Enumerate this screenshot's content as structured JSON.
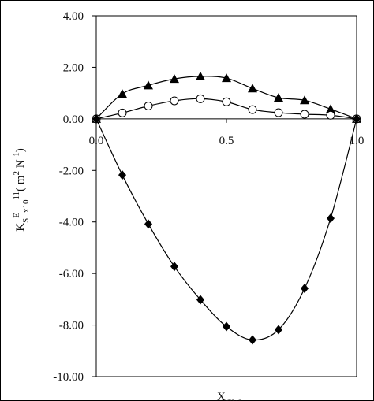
{
  "chart_data": {
    "type": "line",
    "x_label": [
      "X",
      "CW"
    ],
    "y_label": [
      "K",
      "S",
      "E",
      "x10",
      "11",
      "( m",
      "2",
      " N",
      "-1",
      ")"
    ],
    "xlim": [
      0,
      1
    ],
    "ylim": [
      -10,
      4
    ],
    "xticks": [
      {
        "value": 0,
        "label": "0.0"
      },
      {
        "value": 0.5,
        "label": "0.5"
      },
      {
        "value": 1,
        "label": "1.0"
      }
    ],
    "yticks": [
      {
        "value": 4,
        "label": "4.00"
      },
      {
        "value": 2,
        "label": "2.00"
      },
      {
        "value": 0,
        "label": "0.00"
      },
      {
        "value": -2,
        "label": "-2.00"
      },
      {
        "value": -4,
        "label": "-4.00"
      },
      {
        "value": -6,
        "label": "-6.00"
      },
      {
        "value": -8,
        "label": "-8.00"
      },
      {
        "value": -10,
        "label": "-10.00"
      }
    ],
    "x": [
      0,
      0.1,
      0.2,
      0.3,
      0.4,
      0.5,
      0.6,
      0.7,
      0.8,
      0.9,
      1.0
    ],
    "series": [
      {
        "marker": "triangle",
        "color": "#000000",
        "values": [
          0,
          0.97,
          1.3,
          1.55,
          1.65,
          1.58,
          1.18,
          0.82,
          0.72,
          0.38,
          0
        ]
      },
      {
        "marker": "circle",
        "color": "#000000",
        "values": [
          0,
          0.23,
          0.5,
          0.7,
          0.78,
          0.66,
          0.36,
          0.24,
          0.18,
          0.14,
          0
        ]
      },
      {
        "marker": "diamond",
        "color": "#000000",
        "values": [
          0,
          -2.18,
          -4.08,
          -5.73,
          -7.02,
          -8.06,
          -8.58,
          -8.18,
          -6.58,
          -3.86,
          0
        ]
      }
    ]
  }
}
